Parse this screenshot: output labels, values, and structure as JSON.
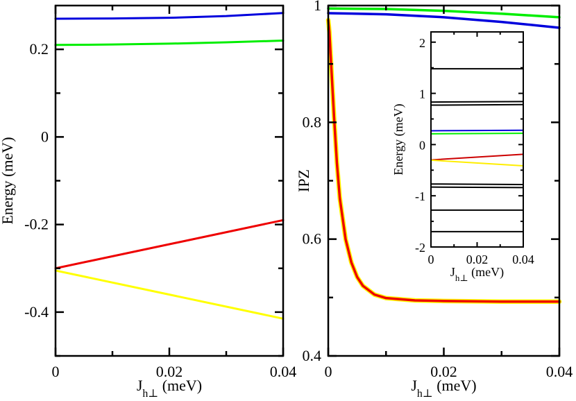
{
  "chart_data": [
    {
      "id": "left",
      "type": "line",
      "title": "",
      "xlabel": "J",
      "xlabel_sub": "h⊥",
      "xlabel_unit": " (meV)",
      "ylabel": "Energy (meV)",
      "xlim": [
        0,
        0.04
      ],
      "ylim": [
        -0.5,
        0.3
      ],
      "xticks": [
        0,
        0.02,
        0.04
      ],
      "xtick_labels": [
        "0",
        "0.02",
        "0.04"
      ],
      "xminor": [
        0.01,
        0.03
      ],
      "yticks": [
        -0.4,
        -0.2,
        0,
        0.2
      ],
      "ytick_labels": [
        "-0.4",
        "-0.2",
        "0",
        "0.2"
      ],
      "yminor": [
        -0.5,
        -0.3,
        -0.1,
        0.1
      ],
      "series": [
        {
          "name": "blue",
          "color": "#0000dd",
          "x": [
            0,
            0.01,
            0.02,
            0.03,
            0.04
          ],
          "y": [
            0.27,
            0.2705,
            0.272,
            0.276,
            0.283
          ]
        },
        {
          "name": "green",
          "color": "#00ee00",
          "x": [
            0,
            0.01,
            0.02,
            0.03,
            0.04
          ],
          "y": [
            0.21,
            0.211,
            0.213,
            0.216,
            0.22
          ]
        },
        {
          "name": "red",
          "color": "#ee0000",
          "x": [
            0,
            0.04
          ],
          "y": [
            -0.3,
            -0.19
          ]
        },
        {
          "name": "yellow",
          "color": "#ffff00",
          "x": [
            0,
            0.04
          ],
          "y": [
            -0.305,
            -0.415
          ]
        }
      ]
    },
    {
      "id": "right",
      "type": "line",
      "title": "",
      "xlabel": "J",
      "xlabel_sub": "h⊥",
      "xlabel_unit": " (meV)",
      "ylabel": "IPZ",
      "xlim": [
        0,
        0.04
      ],
      "ylim": [
        0.4,
        1.0
      ],
      "xticks": [
        0,
        0.02,
        0.04
      ],
      "xtick_labels": [
        "0",
        "0.02",
        "0.04"
      ],
      "xminor": [
        0.01,
        0.03
      ],
      "yticks": [
        0.4,
        0.6,
        0.8,
        1.0
      ],
      "ytick_labels": [
        "0.4",
        "0.6",
        "0.8",
        "1"
      ],
      "yminor": [
        0.5,
        0.7,
        0.9
      ],
      "series": [
        {
          "name": "green",
          "color": "#00ee00",
          "x": [
            0,
            0.01,
            0.02,
            0.03,
            0.04
          ],
          "y": [
            0.995,
            0.994,
            0.991,
            0.986,
            0.98
          ]
        },
        {
          "name": "blue",
          "color": "#0000dd",
          "x": [
            0,
            0.01,
            0.02,
            0.03,
            0.04
          ],
          "y": [
            0.987,
            0.985,
            0.98,
            0.972,
            0.962
          ]
        },
        {
          "name": "yellow",
          "color": "#ffff00",
          "x": [
            0,
            0.0002,
            0.0005,
            0.001,
            0.0015,
            0.002,
            0.003,
            0.004,
            0.005,
            0.006,
            0.008,
            0.01,
            0.015,
            0.02,
            0.03,
            0.04
          ],
          "y": [
            0.975,
            0.955,
            0.9,
            0.81,
            0.73,
            0.67,
            0.6,
            0.56,
            0.535,
            0.52,
            0.505,
            0.499,
            0.495,
            0.494,
            0.493,
            0.493
          ]
        },
        {
          "name": "red",
          "color": "#ee0000",
          "x": [
            0,
            0.0002,
            0.0005,
            0.001,
            0.0015,
            0.002,
            0.003,
            0.004,
            0.005,
            0.006,
            0.008,
            0.01,
            0.015,
            0.02,
            0.03,
            0.04
          ],
          "y": [
            0.975,
            0.955,
            0.9,
            0.81,
            0.73,
            0.67,
            0.6,
            0.56,
            0.535,
            0.52,
            0.505,
            0.499,
            0.495,
            0.494,
            0.493,
            0.493
          ]
        }
      ]
    },
    {
      "id": "inset",
      "type": "line",
      "title": "",
      "xlabel": "J",
      "xlabel_sub": "h⊥",
      "xlabel_unit": " (meV)",
      "ylabel": "Energy (meV)",
      "xlim": [
        0,
        0.04
      ],
      "ylim": [
        -2,
        2.2
      ],
      "xticks": [
        0,
        0.02,
        0.04
      ],
      "xtick_labels": [
        "0",
        "0.02",
        "0.04"
      ],
      "xminor": [
        0.01,
        0.03
      ],
      "yticks": [
        -2,
        -1,
        0,
        1,
        2
      ],
      "ytick_labels": [
        "-2",
        "-1",
        "0",
        "1",
        "2"
      ],
      "yminor": [
        -1.5,
        -0.5,
        0.5,
        1.5
      ],
      "series": [
        {
          "name": "black-1",
          "color": "#000000",
          "x": [
            0,
            0.04
          ],
          "y": [
            1.48,
            1.48
          ]
        },
        {
          "name": "black-2",
          "color": "#000000",
          "x": [
            0,
            0.04
          ],
          "y": [
            0.83,
            0.84
          ]
        },
        {
          "name": "black-3",
          "color": "#000000",
          "x": [
            0,
            0.04
          ],
          "y": [
            0.77,
            0.78
          ]
        },
        {
          "name": "blue",
          "color": "#0000dd",
          "x": [
            0,
            0.04
          ],
          "y": [
            0.27,
            0.28
          ]
        },
        {
          "name": "green",
          "color": "#00ee00",
          "x": [
            0,
            0.04
          ],
          "y": [
            0.21,
            0.22
          ]
        },
        {
          "name": "red",
          "color": "#cc0000",
          "x": [
            0,
            0.04
          ],
          "y": [
            -0.3,
            -0.19
          ]
        },
        {
          "name": "yellow",
          "color": "#ffee00",
          "x": [
            0,
            0.04
          ],
          "y": [
            -0.305,
            -0.415
          ]
        },
        {
          "name": "black-4",
          "color": "#000000",
          "x": [
            0,
            0.04
          ],
          "y": [
            -0.77,
            -0.78
          ]
        },
        {
          "name": "black-5",
          "color": "#000000",
          "x": [
            0,
            0.04
          ],
          "y": [
            -0.83,
            -0.84
          ]
        },
        {
          "name": "black-6",
          "color": "#000000",
          "x": [
            0,
            0.04
          ],
          "y": [
            -1.28,
            -1.28
          ]
        },
        {
          "name": "black-7",
          "color": "#000000",
          "x": [
            0,
            0.04
          ],
          "y": [
            -1.7,
            -1.7
          ]
        }
      ]
    }
  ]
}
